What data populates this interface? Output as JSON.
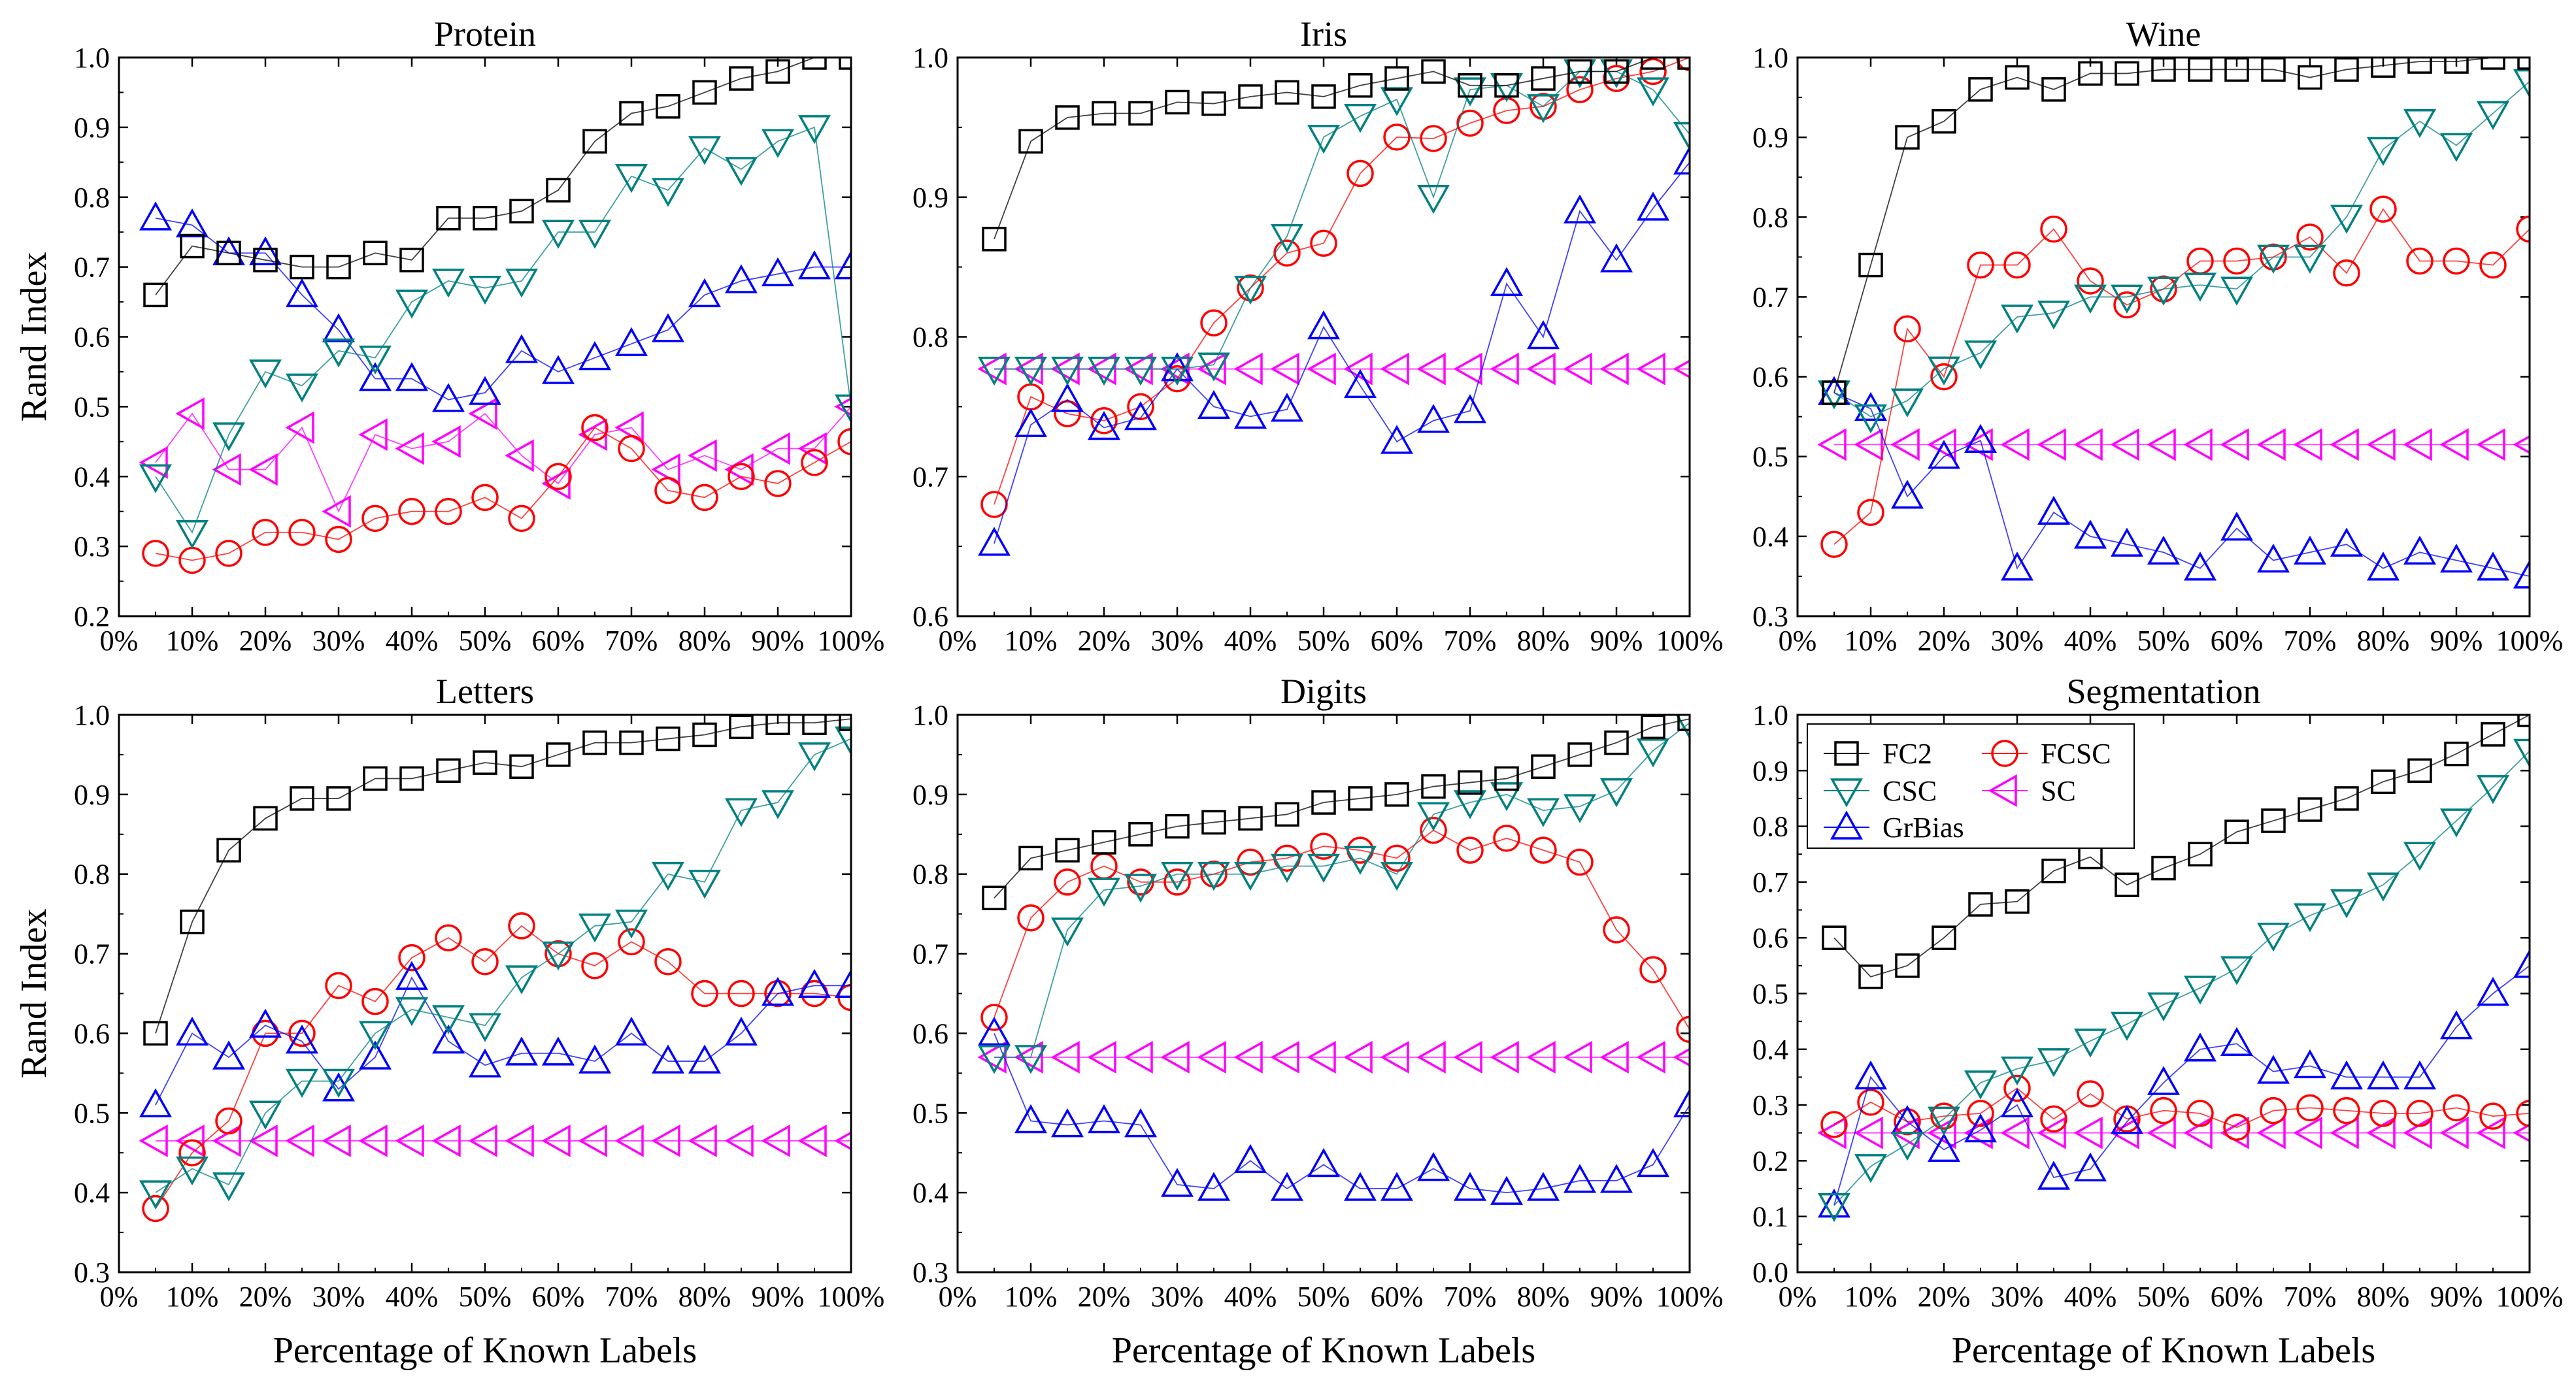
{
  "chart_data": {
    "type": "line",
    "ylabel": "Rand Index",
    "xlabel": "Percentage of Known Labels",
    "x": [
      5,
      10,
      15,
      20,
      25,
      30,
      35,
      40,
      45,
      50,
      55,
      60,
      65,
      70,
      75,
      80,
      85,
      90,
      95,
      100
    ],
    "xticks": [
      "0%",
      "10%",
      "20%",
      "30%",
      "40%",
      "50%",
      "60%",
      "70%",
      "80%",
      "90%",
      "100%"
    ],
    "xlim": [
      0,
      100
    ],
    "legend": {
      "placement": "top-left of Segmentation panel",
      "entries": [
        {
          "name": "FC2",
          "color": "#000000",
          "marker": "square"
        },
        {
          "name": "FCSC",
          "color": "#ff0000",
          "marker": "circle"
        },
        {
          "name": "CSC",
          "color": "#008080",
          "marker": "triangle-down"
        },
        {
          "name": "SC",
          "color": "#ff00ff",
          "marker": "triangle-left"
        },
        {
          "name": "GrBias",
          "color": "#0000ff",
          "marker": "triangle-up"
        }
      ]
    },
    "panels": [
      {
        "title": "Protein",
        "ylim": [
          0.2,
          1.0
        ],
        "yticks": [
          "0.2",
          "0.3",
          "0.4",
          "0.5",
          "0.6",
          "0.7",
          "0.8",
          "0.9",
          "1.0"
        ],
        "series": [
          {
            "name": "FC2",
            "values": [
              0.66,
              0.73,
              0.72,
              0.71,
              0.7,
              0.7,
              0.72,
              0.71,
              0.77,
              0.77,
              0.78,
              0.81,
              0.88,
              0.92,
              0.93,
              0.95,
              0.97,
              0.98,
              1.0,
              1.0
            ]
          },
          {
            "name": "CSC",
            "values": [
              0.4,
              0.32,
              0.46,
              0.55,
              0.53,
              0.58,
              0.57,
              0.65,
              0.68,
              0.67,
              0.68,
              0.75,
              0.75,
              0.83,
              0.81,
              0.87,
              0.84,
              0.88,
              0.9,
              0.5
            ]
          },
          {
            "name": "GrBias",
            "values": [
              0.77,
              0.76,
              0.72,
              0.72,
              0.66,
              0.61,
              0.54,
              0.54,
              0.51,
              0.52,
              0.58,
              0.55,
              0.57,
              0.59,
              0.61,
              0.66,
              0.68,
              0.69,
              0.7,
              0.7
            ]
          },
          {
            "name": "FCSC",
            "values": [
              0.29,
              0.28,
              0.29,
              0.32,
              0.32,
              0.31,
              0.34,
              0.35,
              0.35,
              0.37,
              0.34,
              0.4,
              0.47,
              0.44,
              0.38,
              0.37,
              0.4,
              0.39,
              0.42,
              0.45
            ]
          },
          {
            "name": "SC",
            "values": [
              0.42,
              0.49,
              0.41,
              0.41,
              0.47,
              0.35,
              0.46,
              0.44,
              0.45,
              0.49,
              0.43,
              0.39,
              0.46,
              0.47,
              0.41,
              0.43,
              0.41,
              0.44,
              0.44,
              0.5
            ]
          }
        ]
      },
      {
        "title": "Iris",
        "ylim": [
          0.6,
          1.0
        ],
        "yticks": [
          "0.6",
          "0.7",
          "0.8",
          "0.9",
          "1.0"
        ],
        "series": [
          {
            "name": "FC2",
            "values": [
              0.87,
              0.94,
              0.957,
              0.96,
              0.96,
              0.968,
              0.967,
              0.972,
              0.975,
              0.972,
              0.98,
              0.985,
              0.99,
              0.98,
              0.98,
              0.985,
              0.99,
              0.99,
              1.0,
              1.0
            ]
          },
          {
            "name": "CSC",
            "values": [
              0.777,
              0.777,
              0.777,
              0.777,
              0.777,
              0.777,
              0.78,
              0.835,
              0.872,
              0.943,
              0.958,
              0.97,
              0.9,
              0.977,
              0.98,
              0.965,
              0.99,
              0.99,
              0.977,
              0.945
            ]
          },
          {
            "name": "GrBias",
            "values": [
              0.652,
              0.737,
              0.755,
              0.735,
              0.742,
              0.777,
              0.75,
              0.743,
              0.748,
              0.807,
              0.765,
              0.725,
              0.74,
              0.747,
              0.838,
              0.8,
              0.89,
              0.855,
              0.892,
              0.925
            ]
          },
          {
            "name": "FCSC",
            "values": [
              0.68,
              0.757,
              0.745,
              0.74,
              0.75,
              0.77,
              0.81,
              0.835,
              0.86,
              0.867,
              0.917,
              0.943,
              0.942,
              0.953,
              0.962,
              0.965,
              0.977,
              0.985,
              0.99,
              1.0
            ]
          },
          {
            "name": "SC",
            "values": [
              0.777,
              0.777,
              0.777,
              0.777,
              0.777,
              0.777,
              0.777,
              0.777,
              0.777,
              0.777,
              0.777,
              0.777,
              0.777,
              0.777,
              0.777,
              0.777,
              0.777,
              0.777,
              0.777,
              0.777
            ]
          }
        ]
      },
      {
        "title": "Wine",
        "ylim": [
          0.3,
          1.0
        ],
        "yticks": [
          "0.3",
          "0.4",
          "0.5",
          "0.6",
          "0.7",
          "0.8",
          "0.9",
          "1.0"
        ],
        "series": [
          {
            "name": "FC2",
            "values": [
              0.58,
              0.74,
              0.9,
              0.92,
              0.96,
              0.975,
              0.96,
              0.98,
              0.98,
              0.985,
              0.985,
              0.985,
              0.985,
              0.975,
              0.985,
              0.99,
              0.995,
              0.995,
              1.0,
              1.0
            ]
          },
          {
            "name": "CSC",
            "values": [
              0.58,
              0.55,
              0.57,
              0.61,
              0.63,
              0.675,
              0.68,
              0.7,
              0.7,
              0.71,
              0.715,
              0.71,
              0.75,
              0.75,
              0.8,
              0.885,
              0.92,
              0.89,
              0.93,
              0.97
            ]
          },
          {
            "name": "GrBias",
            "values": [
              0.58,
              0.56,
              0.45,
              0.5,
              0.52,
              0.36,
              0.43,
              0.4,
              0.39,
              0.38,
              0.36,
              0.41,
              0.37,
              0.38,
              0.39,
              0.36,
              0.38,
              0.37,
              0.36,
              0.35
            ]
          },
          {
            "name": "FCSC",
            "values": [
              0.39,
              0.43,
              0.66,
              0.6,
              0.74,
              0.74,
              0.785,
              0.72,
              0.69,
              0.71,
              0.745,
              0.745,
              0.75,
              0.775,
              0.73,
              0.81,
              0.745,
              0.745,
              0.74,
              0.785
            ]
          },
          {
            "name": "SC",
            "values": [
              0.515,
              0.515,
              0.515,
              0.515,
              0.515,
              0.515,
              0.515,
              0.515,
              0.515,
              0.515,
              0.515,
              0.515,
              0.515,
              0.515,
              0.515,
              0.515,
              0.515,
              0.515,
              0.515,
              0.515
            ]
          }
        ]
      },
      {
        "title": "Letters",
        "ylim": [
          0.3,
          1.0
        ],
        "yticks": [
          "0.3",
          "0.4",
          "0.5",
          "0.6",
          "0.7",
          "0.8",
          "0.9",
          "1.0"
        ],
        "series": [
          {
            "name": "FC2",
            "values": [
              0.6,
              0.74,
              0.83,
              0.87,
              0.895,
              0.895,
              0.92,
              0.92,
              0.93,
              0.94,
              0.935,
              0.95,
              0.965,
              0.965,
              0.97,
              0.975,
              0.985,
              0.99,
              0.99,
              0.995
            ]
          },
          {
            "name": "CSC",
            "values": [
              0.4,
              0.43,
              0.41,
              0.5,
              0.54,
              0.54,
              0.6,
              0.63,
              0.62,
              0.61,
              0.67,
              0.7,
              0.735,
              0.74,
              0.8,
              0.79,
              0.88,
              0.89,
              0.95,
              0.97
            ]
          },
          {
            "name": "GrBias",
            "values": [
              0.51,
              0.6,
              0.57,
              0.61,
              0.59,
              0.53,
              0.57,
              0.67,
              0.59,
              0.56,
              0.575,
              0.575,
              0.565,
              0.6,
              0.565,
              0.565,
              0.6,
              0.65,
              0.66,
              0.66
            ]
          },
          {
            "name": "FCSC",
            "values": [
              0.38,
              0.45,
              0.49,
              0.6,
              0.6,
              0.66,
              0.64,
              0.695,
              0.72,
              0.69,
              0.735,
              0.7,
              0.685,
              0.715,
              0.69,
              0.65,
              0.65,
              0.65,
              0.65,
              0.645
            ]
          },
          {
            "name": "SC",
            "values": [
              0.465,
              0.465,
              0.465,
              0.465,
              0.465,
              0.465,
              0.465,
              0.465,
              0.465,
              0.465,
              0.465,
              0.465,
              0.465,
              0.465,
              0.465,
              0.465,
              0.465,
              0.465,
              0.465,
              0.465
            ]
          }
        ]
      },
      {
        "title": "Digits",
        "ylim": [
          0.3,
          1.0
        ],
        "yticks": [
          "0.3",
          "0.4",
          "0.5",
          "0.6",
          "0.7",
          "0.8",
          "0.9",
          "1.0"
        ],
        "series": [
          {
            "name": "FC2",
            "values": [
              0.77,
              0.82,
              0.83,
              0.84,
              0.85,
              0.86,
              0.865,
              0.87,
              0.875,
              0.89,
              0.895,
              0.9,
              0.91,
              0.915,
              0.92,
              0.935,
              0.95,
              0.965,
              0.985,
              0.995
            ]
          },
          {
            "name": "CSC",
            "values": [
              0.57,
              0.57,
              0.73,
              0.78,
              0.785,
              0.8,
              0.8,
              0.8,
              0.81,
              0.81,
              0.82,
              0.8,
              0.875,
              0.89,
              0.9,
              0.88,
              0.885,
              0.905,
              0.955,
              0.99
            ]
          },
          {
            "name": "GrBias",
            "values": [
              0.6,
              0.49,
              0.485,
              0.49,
              0.485,
              0.41,
              0.405,
              0.44,
              0.405,
              0.435,
              0.405,
              0.405,
              0.43,
              0.405,
              0.4,
              0.405,
              0.415,
              0.415,
              0.435,
              0.51
            ]
          },
          {
            "name": "FCSC",
            "values": [
              0.62,
              0.745,
              0.79,
              0.81,
              0.79,
              0.79,
              0.8,
              0.815,
              0.82,
              0.835,
              0.83,
              0.82,
              0.855,
              0.83,
              0.845,
              0.83,
              0.815,
              0.73,
              0.68,
              0.605
            ]
          },
          {
            "name": "SC",
            "values": [
              0.57,
              0.57,
              0.57,
              0.57,
              0.57,
              0.57,
              0.57,
              0.57,
              0.57,
              0.57,
              0.57,
              0.57,
              0.57,
              0.57,
              0.57,
              0.57,
              0.57,
              0.57,
              0.57,
              0.57
            ]
          }
        ]
      },
      {
        "title": "Segmentation",
        "ylim": [
          0.0,
          1.0
        ],
        "yticks": [
          "0.0",
          "0.1",
          "0.2",
          "0.3",
          "0.4",
          "0.5",
          "0.6",
          "0.7",
          "0.8",
          "0.9",
          "1.0"
        ],
        "series": [
          {
            "name": "FC2",
            "values": [
              0.6,
              0.53,
              0.55,
              0.6,
              0.66,
              0.665,
              0.72,
              0.745,
              0.695,
              0.725,
              0.75,
              0.79,
              0.81,
              0.83,
              0.85,
              0.88,
              0.9,
              0.93,
              0.965,
              1.0
            ]
          },
          {
            "name": "CSC",
            "values": [
              0.12,
              0.19,
              0.23,
              0.275,
              0.34,
              0.365,
              0.38,
              0.415,
              0.445,
              0.48,
              0.51,
              0.545,
              0.605,
              0.64,
              0.665,
              0.695,
              0.75,
              0.81,
              0.87,
              0.935
            ]
          },
          {
            "name": "GrBias",
            "values": [
              0.12,
              0.35,
              0.27,
              0.22,
              0.255,
              0.3,
              0.17,
              0.185,
              0.27,
              0.34,
              0.4,
              0.41,
              0.36,
              0.37,
              0.35,
              0.35,
              0.35,
              0.44,
              0.5,
              0.55
            ]
          },
          {
            "name": "FCSC",
            "values": [
              0.265,
              0.305,
              0.27,
              0.28,
              0.285,
              0.33,
              0.275,
              0.32,
              0.275,
              0.29,
              0.285,
              0.26,
              0.29,
              0.295,
              0.29,
              0.285,
              0.285,
              0.295,
              0.28,
              0.285
            ]
          },
          {
            "name": "SC",
            "values": [
              0.25,
              0.25,
              0.25,
              0.25,
              0.25,
              0.25,
              0.25,
              0.25,
              0.25,
              0.25,
              0.25,
              0.25,
              0.25,
              0.25,
              0.25,
              0.25,
              0.25,
              0.25,
              0.25,
              0.25
            ]
          }
        ]
      }
    ]
  }
}
